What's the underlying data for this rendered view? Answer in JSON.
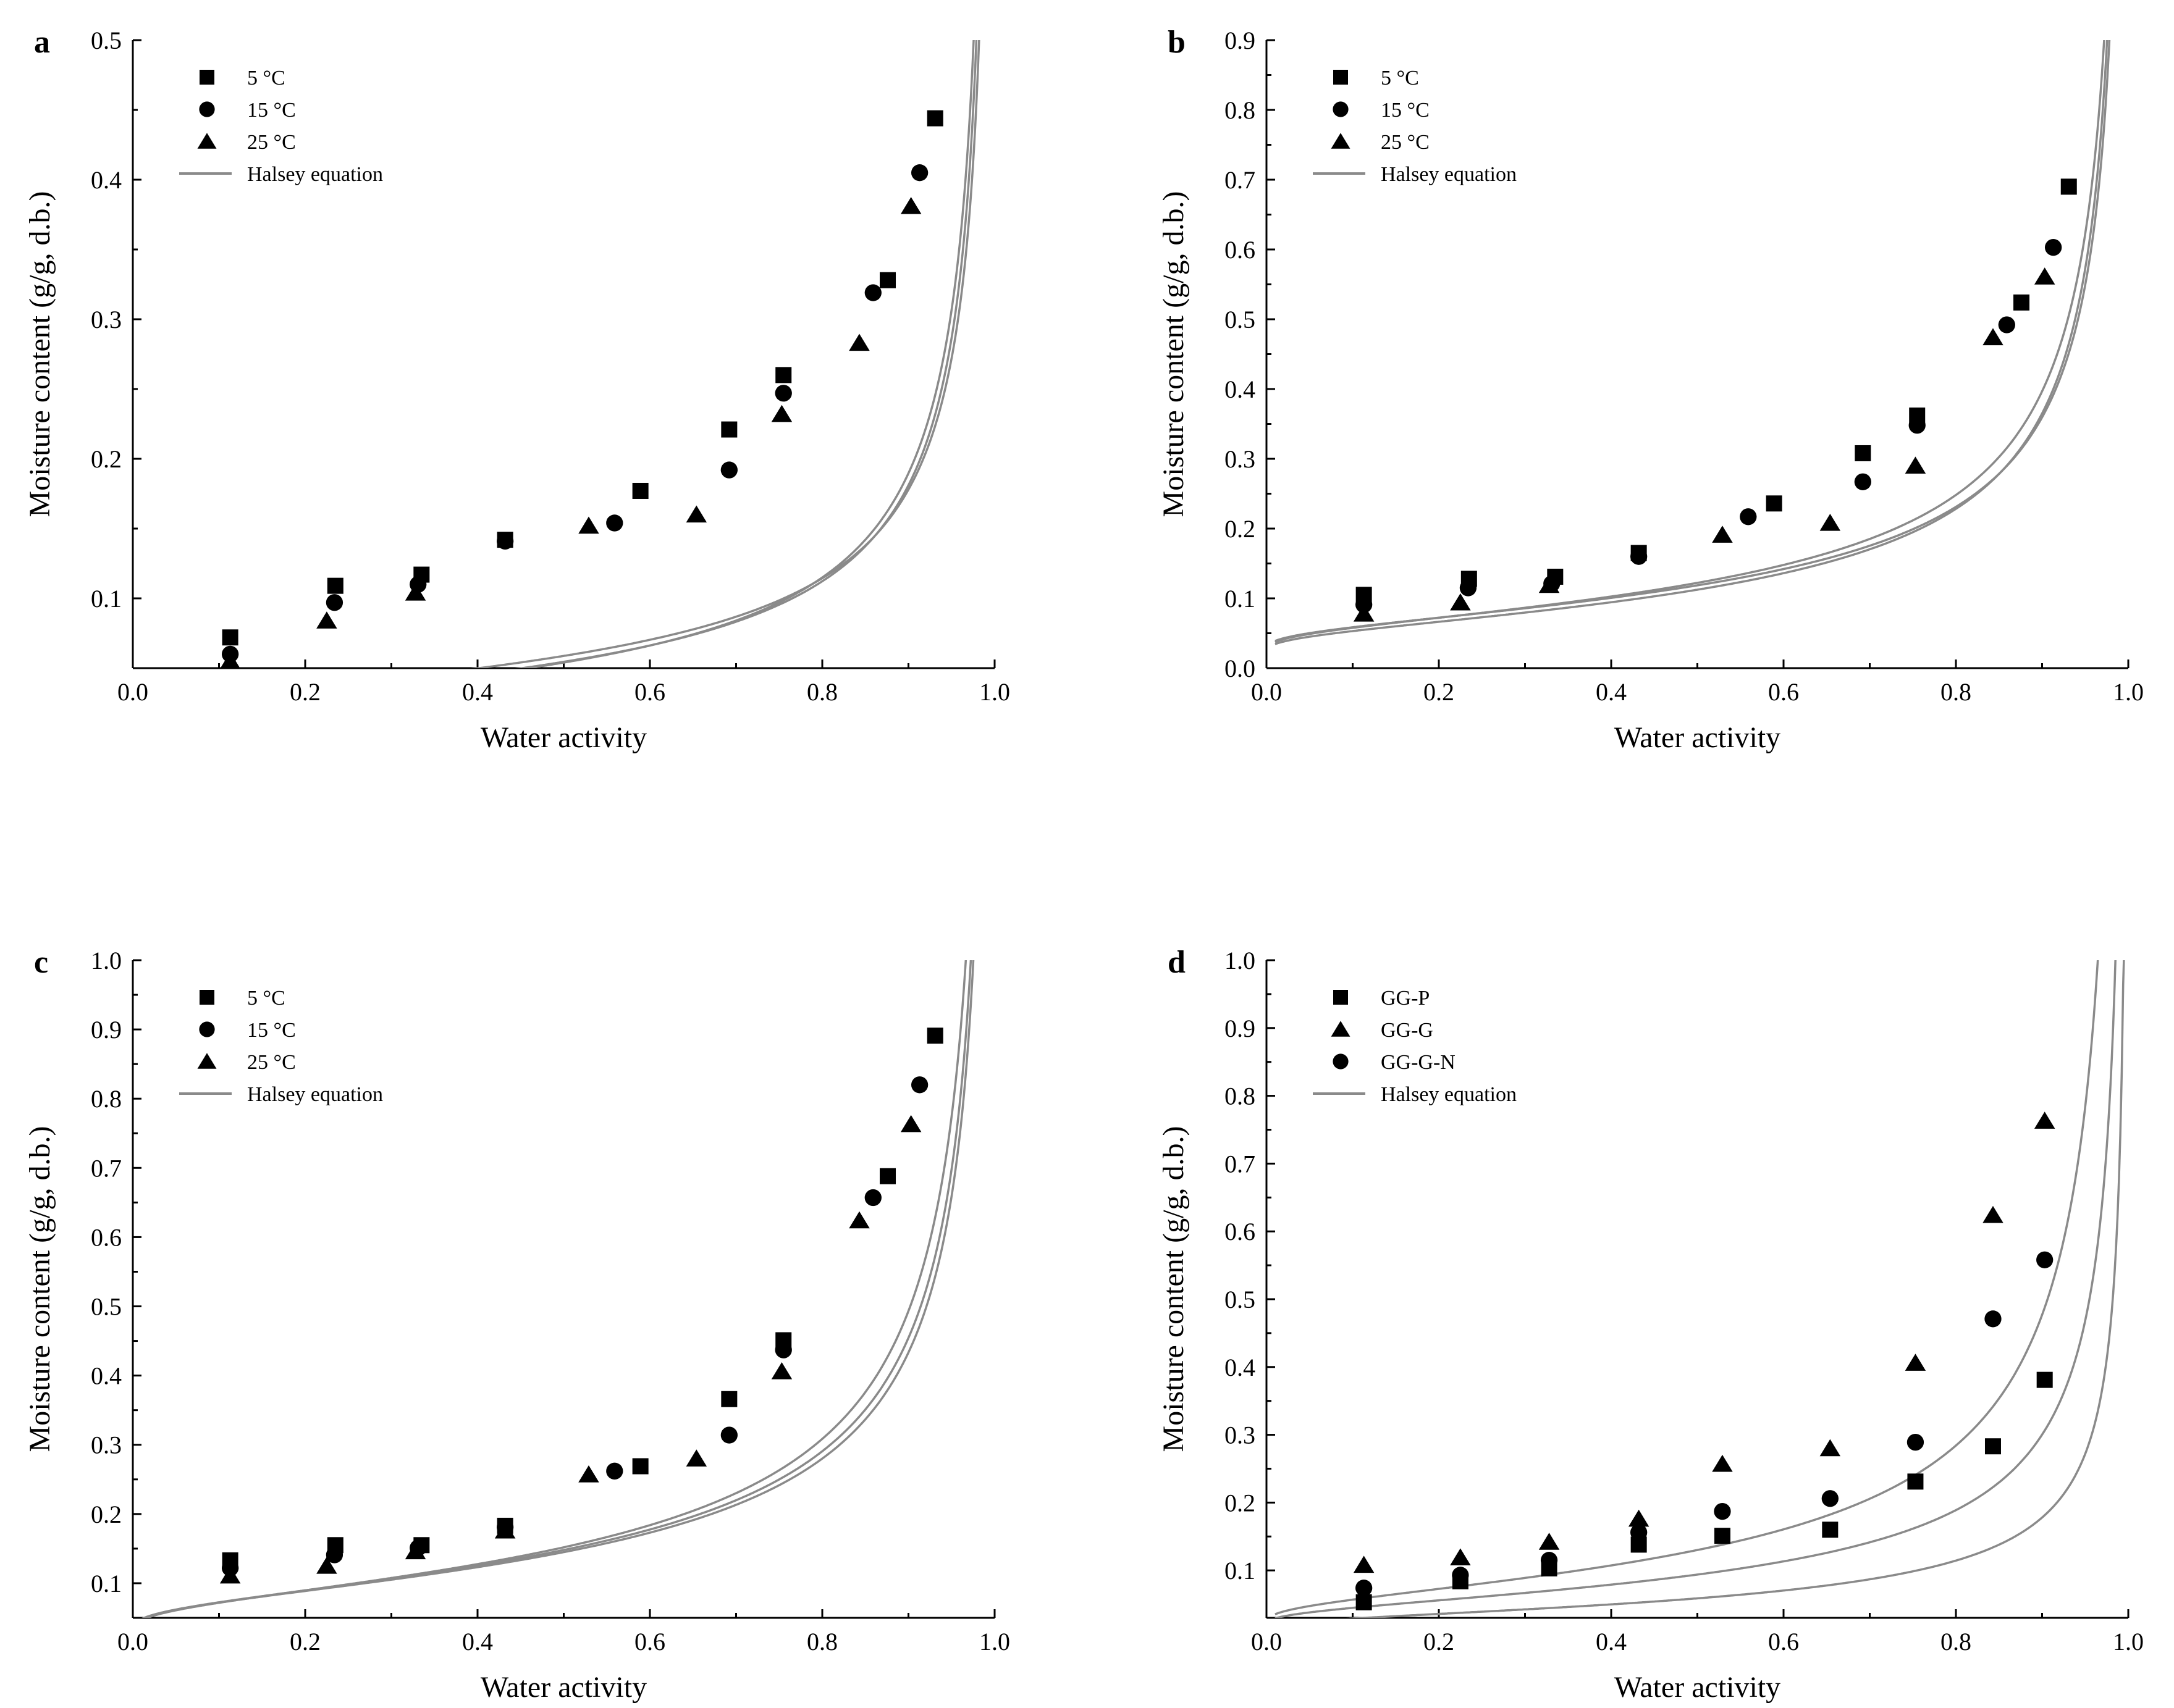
{
  "figure": {
    "panels": [
      "a",
      "b",
      "c",
      "d"
    ]
  },
  "chart_data": [
    {
      "type": "scatter",
      "panel_label": "a",
      "xlabel": "Water activity",
      "ylabel": "Moisture content (g/g, d.b.)",
      "xlim": [
        0.0,
        1.0
      ],
      "ylim": [
        0.05,
        0.5
      ],
      "xticks": [
        "0.0",
        "0.2",
        "0.4",
        "0.6",
        "0.8",
        "1.0"
      ],
      "yticks": [
        0.1,
        0.2,
        0.3,
        0.4,
        0.5
      ],
      "ytick_labels": [
        "0.1",
        "0.2",
        "0.3",
        "0.4",
        "0.5"
      ],
      "legend": [
        "5 °C",
        "15 °C",
        "25 °C",
        "Halsey equation"
      ],
      "legend_position": "top-left",
      "series": [
        {
          "name": "5 °C",
          "marker": "square",
          "x": [
            0.113,
            0.235,
            0.335,
            0.432,
            0.589,
            0.692,
            0.755,
            0.876,
            0.931
          ],
          "y": [
            0.072,
            0.109,
            0.117,
            0.142,
            0.177,
            0.221,
            0.26,
            0.328,
            0.444
          ]
        },
        {
          "name": "15 °C",
          "marker": "circle",
          "x": [
            0.113,
            0.234,
            0.331,
            0.432,
            0.559,
            0.692,
            0.755,
            0.859,
            0.913
          ],
          "y": [
            0.06,
            0.097,
            0.11,
            0.141,
            0.154,
            0.192,
            0.247,
            0.319,
            0.405
          ]
        },
        {
          "name": "25 °C",
          "marker": "triangle",
          "x": [
            0.113,
            0.225,
            0.328,
            0.529,
            0.654,
            0.753,
            0.843,
            0.903
          ],
          "y": [
            0.055,
            0.084,
            0.104,
            0.152,
            0.16,
            0.232,
            0.283,
            0.381
          ]
        }
      ],
      "fits": [
        {
          "name": "Halsey equation",
          "a": 0.0056,
          "r": 1.7
        },
        {
          "name": "Halsey equation",
          "a": 0.0072,
          "r": 1.57
        },
        {
          "name": "Halsey equation",
          "a": 0.0087,
          "r": 1.5
        }
      ]
    },
    {
      "type": "scatter",
      "panel_label": "b",
      "xlabel": "Water activity",
      "ylabel": "Moisture content (g/g, d.b.)",
      "xlim": [
        0.0,
        1.0
      ],
      "ylim": [
        0.0,
        0.9
      ],
      "xticks": [
        "0.0",
        "0.2",
        "0.4",
        "0.6",
        "0.8",
        "1.0"
      ],
      "yticks": [
        0.0,
        0.1,
        0.2,
        0.3,
        0.4,
        0.5,
        0.6,
        0.7,
        0.8,
        0.9
      ],
      "ytick_labels": [
        "0.0",
        "0.1",
        "0.2",
        "0.3",
        "0.4",
        "0.5",
        "0.6",
        "0.7",
        "0.8",
        "0.9"
      ],
      "legend": [
        "5 °C",
        "15 °C",
        "25 °C",
        "Halsey equation"
      ],
      "legend_position": "top-left",
      "series": [
        {
          "name": "5 °C",
          "marker": "square",
          "x": [
            0.113,
            0.235,
            0.335,
            0.432,
            0.589,
            0.692,
            0.755,
            0.876,
            0.931
          ],
          "y": [
            0.105,
            0.128,
            0.131,
            0.165,
            0.236,
            0.308,
            0.362,
            0.524,
            0.69
          ]
        },
        {
          "name": "15 °C",
          "marker": "circle",
          "x": [
            0.113,
            0.234,
            0.331,
            0.432,
            0.559,
            0.692,
            0.755,
            0.859,
            0.913
          ],
          "y": [
            0.091,
            0.115,
            0.121,
            0.16,
            0.217,
            0.267,
            0.348,
            0.492,
            0.603
          ]
        },
        {
          "name": "25 °C",
          "marker": "triangle",
          "x": [
            0.113,
            0.225,
            0.328,
            0.529,
            0.654,
            0.753,
            0.843,
            0.903
          ],
          "y": [
            0.078,
            0.094,
            0.119,
            0.191,
            0.208,
            0.29,
            0.474,
            0.561
          ]
        }
      ],
      "fits": [
        {
          "name": "Halsey equation",
          "a": 0.021,
          "r": 1.6
        },
        {
          "name": "Halsey equation",
          "a": 0.0185,
          "r": 1.7
        },
        {
          "name": "Halsey equation",
          "a": 0.024,
          "r": 1.6
        }
      ]
    },
    {
      "type": "scatter",
      "panel_label": "c",
      "xlabel": "Water activity",
      "ylabel": "Moisture content (g/g, d.b.)",
      "xlim": [
        0.0,
        1.0
      ],
      "ylim": [
        0.05,
        1.0
      ],
      "xticks": [
        "0.0",
        "0.2",
        "0.4",
        "0.6",
        "0.8",
        "1.0"
      ],
      "yticks": [
        0.1,
        0.2,
        0.3,
        0.4,
        0.5,
        0.6,
        0.7,
        0.8,
        0.9,
        1.0
      ],
      "ytick_labels": [
        "0.1",
        "0.2",
        "0.3",
        "0.4",
        "0.5",
        "0.6",
        "0.7",
        "0.8",
        "0.9",
        "1.0"
      ],
      "legend": [
        "5 °C",
        "15 °C",
        "25 °C",
        "Halsey equation"
      ],
      "legend_position": "top-left",
      "series": [
        {
          "name": "5 °C",
          "marker": "square",
          "x": [
            0.113,
            0.235,
            0.335,
            0.432,
            0.589,
            0.692,
            0.755,
            0.876,
            0.931
          ],
          "y": [
            0.133,
            0.155,
            0.155,
            0.183,
            0.269,
            0.366,
            0.451,
            0.688,
            0.891
          ]
        },
        {
          "name": "15 °C",
          "marker": "circle",
          "x": [
            0.113,
            0.234,
            0.331,
            0.432,
            0.559,
            0.692,
            0.755,
            0.859,
            0.913
          ],
          "y": [
            0.122,
            0.141,
            0.151,
            0.181,
            0.262,
            0.314,
            0.437,
            0.657,
            0.82
          ]
        },
        {
          "name": "25 °C",
          "marker": "triangle",
          "x": [
            0.113,
            0.225,
            0.328,
            0.432,
            0.529,
            0.654,
            0.753,
            0.843,
            0.903
          ],
          "y": [
            0.111,
            0.125,
            0.146,
            0.176,
            0.257,
            0.28,
            0.406,
            0.624,
            0.763
          ]
        }
      ],
      "fits": [
        {
          "name": "Halsey equation",
          "a": 0.034,
          "r": 1.6
        },
        {
          "name": "Halsey equation",
          "a": 0.028,
          "r": 1.68
        },
        {
          "name": "Halsey equation",
          "a": 0.025,
          "r": 1.72
        }
      ]
    },
    {
      "type": "scatter",
      "panel_label": "d",
      "xlabel": "Water activity",
      "ylabel": "Moisture content (g/g, d.b.)",
      "xlim": [
        0.0,
        1.0
      ],
      "ylim": [
        0.03,
        1.0
      ],
      "xticks": [
        "0.0",
        "0.2",
        "0.4",
        "0.6",
        "0.8",
        "1.0"
      ],
      "yticks": [
        0.1,
        0.2,
        0.3,
        0.4,
        0.5,
        0.6,
        0.7,
        0.8,
        0.9,
        1.0
      ],
      "ytick_labels": [
        "0.1",
        "0.2",
        "0.3",
        "0.4",
        "0.5",
        "0.6",
        "0.7",
        "0.8",
        "0.9",
        "1.0"
      ],
      "legend": [
        "GG-P",
        "GG-G",
        "GG-G-N",
        "Halsey equation"
      ],
      "legend_position": "top-left",
      "series": [
        {
          "name": "GG-P",
          "marker": "square",
          "x": [
            0.113,
            0.225,
            0.328,
            0.432,
            0.529,
            0.654,
            0.753,
            0.843,
            0.903
          ],
          "y": [
            0.053,
            0.084,
            0.103,
            0.138,
            0.151,
            0.16,
            0.231,
            0.283,
            0.381
          ]
        },
        {
          "name": "GG-G",
          "marker": "triangle",
          "x": [
            0.113,
            0.225,
            0.328,
            0.432,
            0.529,
            0.654,
            0.753,
            0.843,
            0.903
          ],
          "y": [
            0.108,
            0.119,
            0.142,
            0.176,
            0.257,
            0.28,
            0.406,
            0.624,
            0.763
          ]
        },
        {
          "name": "GG-G-N",
          "marker": "circle",
          "x": [
            0.113,
            0.225,
            0.328,
            0.432,
            0.529,
            0.654,
            0.753,
            0.843,
            0.903
          ],
          "y": [
            0.074,
            0.093,
            0.115,
            0.156,
            0.187,
            0.206,
            0.289,
            0.471,
            0.558
          ]
        }
      ],
      "fits": [
        {
          "name": "Halsey equation",
          "a": 0.0056,
          "r": 1.7
        },
        {
          "name": "Halsey equation",
          "a": 0.015,
          "r": 1.62
        },
        {
          "name": "Halsey equation",
          "a": 0.036,
          "r": 1.45
        }
      ]
    }
  ]
}
